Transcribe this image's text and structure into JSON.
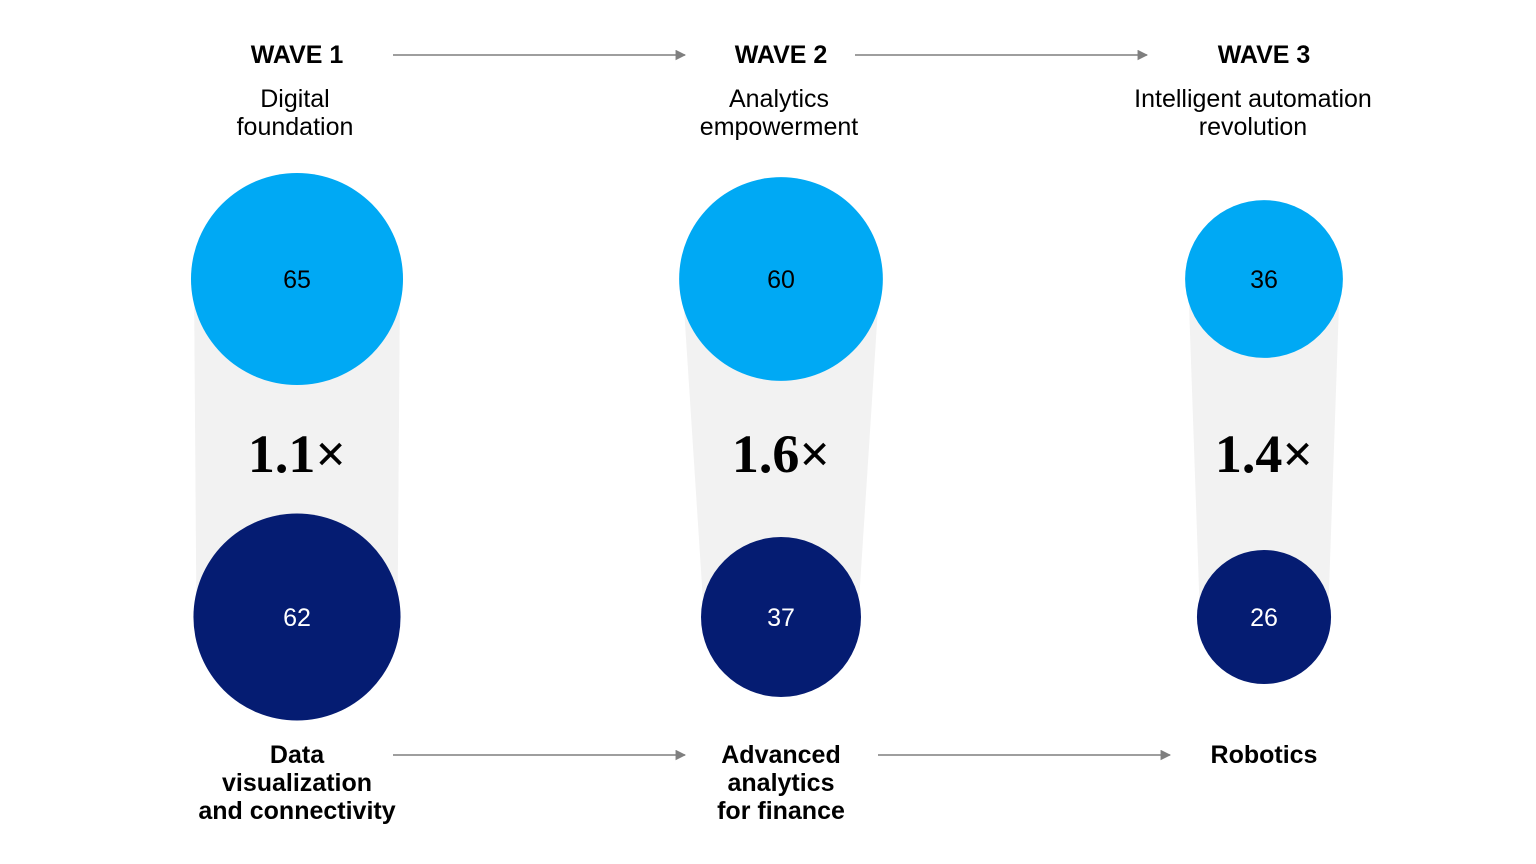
{
  "colors": {
    "top_circle": "#00a9f4",
    "bottom_circle": "#051c72",
    "connector": "#f2f2f2",
    "arrow": "#7f7f7f"
  },
  "waves": [
    {
      "title": "WAVE 1",
      "subtitle": [
        "Digital",
        "foundation"
      ],
      "top_value": "65",
      "bottom_value": "62",
      "multiplier": "1.1×",
      "bottom_label": [
        "Data",
        "visualization",
        "and connectivity"
      ]
    },
    {
      "title": "WAVE 2",
      "subtitle": [
        "Analytics",
        "empowerment"
      ],
      "top_value": "60",
      "bottom_value": "37",
      "multiplier": "1.6×",
      "bottom_label": [
        "Advanced",
        "analytics",
        "for finance"
      ]
    },
    {
      "title": "WAVE 3",
      "subtitle": [
        "Intelligent automation",
        "revolution"
      ],
      "top_value": "36",
      "bottom_value": "26",
      "multiplier": "1.4×",
      "bottom_label": [
        "Robotics"
      ]
    }
  ]
}
